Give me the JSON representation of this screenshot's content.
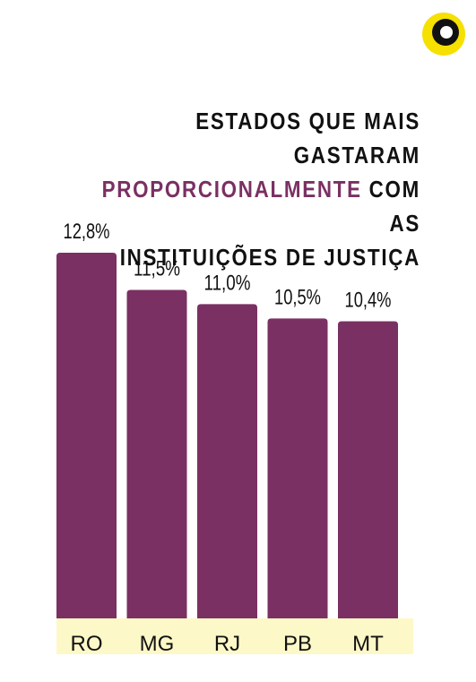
{
  "title": {
    "line1": "ESTADOS QUE MAIS GASTARAM",
    "line2_highlight": "PROPORCIONALMENTE",
    "line2_rest": " COM AS",
    "line3": "INSTITUIÇÕES DE JUSTIÇA"
  },
  "logo": {
    "icon": "circle-logo-icon",
    "colors": {
      "outer": "#f5e000",
      "ring": "#111111",
      "inner": "#ffffff"
    }
  },
  "colors": {
    "bar": "#7a3063",
    "highlight": "#7a3063",
    "category_band": "#fdf8c8",
    "text": "#111111"
  },
  "chart_data": {
    "type": "bar",
    "title": "ESTADOS QUE MAIS GASTARAM PROPORCIONALMENTE COM AS INSTITUIÇÕES DE JUSTIÇA",
    "categories": [
      "RO",
      "MG",
      "RJ",
      "PB",
      "MT"
    ],
    "values": [
      12.8,
      11.5,
      11.0,
      10.5,
      10.4
    ],
    "value_labels": [
      "12,8%",
      "11,5%",
      "11,0%",
      "10,5%",
      "10,4%"
    ],
    "unit": "%",
    "ylim": [
      0,
      12.8
    ],
    "grid": false,
    "legend": "none"
  }
}
